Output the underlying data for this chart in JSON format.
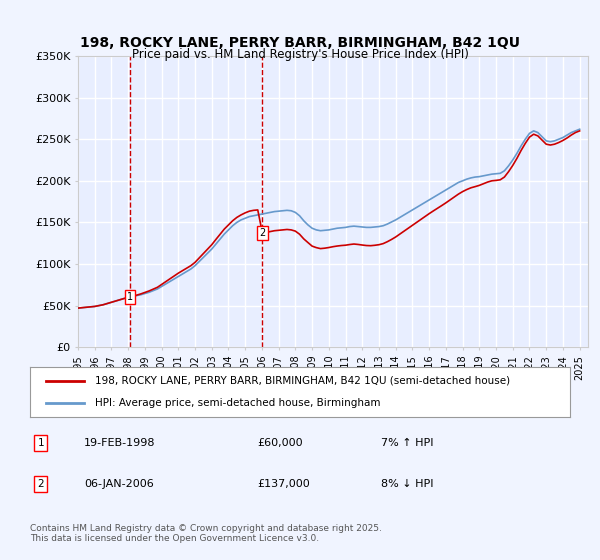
{
  "title": "198, ROCKY LANE, PERRY BARR, BIRMINGHAM, B42 1QU",
  "subtitle": "Price paid vs. HM Land Registry's House Price Index (HPI)",
  "xlabel": "",
  "ylabel": "",
  "background_color": "#f0f4ff",
  "plot_bg_color": "#e8eeff",
  "grid_color": "#ffffff",
  "ylim": [
    0,
    350000
  ],
  "yticks": [
    0,
    50000,
    100000,
    150000,
    200000,
    250000,
    300000,
    350000
  ],
  "ytick_labels": [
    "£0",
    "£50K",
    "£100K",
    "£150K",
    "£200K",
    "£250K",
    "£300K",
    "£350K"
  ],
  "xlim": [
    1995,
    2025.5
  ],
  "xticks": [
    1995,
    1996,
    1997,
    1998,
    1999,
    2000,
    2001,
    2002,
    2003,
    2004,
    2005,
    2006,
    2007,
    2008,
    2009,
    2010,
    2011,
    2012,
    2013,
    2014,
    2015,
    2016,
    2017,
    2018,
    2019,
    2020,
    2021,
    2022,
    2023,
    2024,
    2025
  ],
  "sale_dates": [
    1998.13,
    2006.03
  ],
  "sale_prices": [
    60000,
    137000
  ],
  "sale_labels": [
    "1",
    "2"
  ],
  "sale_info": [
    {
      "label": "1",
      "date": "19-FEB-1998",
      "price": "£60,000",
      "hpi": "7% ↑ HPI"
    },
    {
      "label": "2",
      "date": "06-JAN-2006",
      "price": "£137,000",
      "hpi": "8% ↓ HPI"
    }
  ],
  "legend_entries": [
    "198, ROCKY LANE, PERRY BARR, BIRMINGHAM, B42 1QU (semi-detached house)",
    "HPI: Average price, semi-detached house, Birmingham"
  ],
  "line_color_red": "#cc0000",
  "line_color_blue": "#6699cc",
  "footer": "Contains HM Land Registry data © Crown copyright and database right 2025.\nThis data is licensed under the Open Government Licence v3.0.",
  "hpi_x": [
    1995.0,
    1995.25,
    1995.5,
    1995.75,
    1996.0,
    1996.25,
    1996.5,
    1996.75,
    1997.0,
    1997.25,
    1997.5,
    1997.75,
    1998.0,
    1998.25,
    1998.5,
    1998.75,
    1999.0,
    1999.25,
    1999.5,
    1999.75,
    2000.0,
    2000.25,
    2000.5,
    2000.75,
    2001.0,
    2001.25,
    2001.5,
    2001.75,
    2002.0,
    2002.25,
    2002.5,
    2002.75,
    2003.0,
    2003.25,
    2003.5,
    2003.75,
    2004.0,
    2004.25,
    2004.5,
    2004.75,
    2005.0,
    2005.25,
    2005.5,
    2005.75,
    2006.0,
    2006.25,
    2006.5,
    2006.75,
    2007.0,
    2007.25,
    2007.5,
    2007.75,
    2008.0,
    2008.25,
    2008.5,
    2008.75,
    2009.0,
    2009.25,
    2009.5,
    2009.75,
    2010.0,
    2010.25,
    2010.5,
    2010.75,
    2011.0,
    2011.25,
    2011.5,
    2011.75,
    2012.0,
    2012.25,
    2012.5,
    2012.75,
    2013.0,
    2013.25,
    2013.5,
    2013.75,
    2014.0,
    2014.25,
    2014.5,
    2014.75,
    2015.0,
    2015.25,
    2015.5,
    2015.75,
    2016.0,
    2016.25,
    2016.5,
    2016.75,
    2017.0,
    2017.25,
    2017.5,
    2017.75,
    2018.0,
    2018.25,
    2018.5,
    2018.75,
    2019.0,
    2019.25,
    2019.5,
    2019.75,
    2020.0,
    2020.25,
    2020.5,
    2020.75,
    2021.0,
    2021.25,
    2021.5,
    2021.75,
    2022.0,
    2022.25,
    2022.5,
    2022.75,
    2023.0,
    2023.25,
    2023.5,
    2023.75,
    2024.0,
    2024.25,
    2024.5,
    2024.75,
    2025.0
  ],
  "hpi_y": [
    47000,
    47500,
    48000,
    48500,
    49000,
    50000,
    51000,
    52500,
    54000,
    55500,
    57000,
    58500,
    60000,
    61000,
    62000,
    63000,
    64500,
    66000,
    68000,
    70000,
    73000,
    76000,
    79000,
    82000,
    85000,
    88000,
    91000,
    94000,
    98000,
    103000,
    108000,
    113000,
    118000,
    124000,
    130000,
    136000,
    141000,
    146000,
    150000,
    153000,
    155000,
    157000,
    158000,
    159000,
    160000,
    161000,
    162000,
    163000,
    163500,
    164000,
    164500,
    164000,
    162000,
    158000,
    152000,
    147000,
    143000,
    141000,
    140000,
    140500,
    141000,
    142000,
    143000,
    143500,
    144000,
    145000,
    145500,
    145000,
    144500,
    144000,
    144000,
    144500,
    145000,
    146000,
    148000,
    150500,
    153000,
    156000,
    159000,
    162000,
    165000,
    168000,
    171000,
    174000,
    177000,
    180000,
    183000,
    186000,
    189000,
    192000,
    195000,
    198000,
    200000,
    202000,
    203500,
    204500,
    205000,
    206000,
    207000,
    208000,
    208500,
    209000,
    212000,
    218000,
    225000,
    233000,
    242000,
    250000,
    257000,
    260000,
    258000,
    253000,
    248000,
    247000,
    248000,
    250000,
    252000,
    255000,
    258000,
    260000,
    262000
  ],
  "red_x": [
    1995.0,
    1995.25,
    1995.5,
    1995.75,
    1996.0,
    1996.25,
    1996.5,
    1996.75,
    1997.0,
    1997.25,
    1997.5,
    1997.75,
    1998.13,
    1998.25,
    1998.5,
    1998.75,
    1999.0,
    1999.25,
    1999.5,
    1999.75,
    2000.0,
    2000.25,
    2000.5,
    2000.75,
    2001.0,
    2001.25,
    2001.5,
    2001.75,
    2002.0,
    2002.25,
    2002.5,
    2002.75,
    2003.0,
    2003.25,
    2003.5,
    2003.75,
    2004.0,
    2004.25,
    2004.5,
    2004.75,
    2005.0,
    2005.25,
    2005.5,
    2005.75,
    2006.03,
    2006.25,
    2006.5,
    2006.75,
    2007.0,
    2007.25,
    2007.5,
    2007.75,
    2008.0,
    2008.25,
    2008.5,
    2008.75,
    2009.0,
    2009.25,
    2009.5,
    2009.75,
    2010.0,
    2010.25,
    2010.5,
    2010.75,
    2011.0,
    2011.25,
    2011.5,
    2011.75,
    2012.0,
    2012.25,
    2012.5,
    2012.75,
    2013.0,
    2013.25,
    2013.5,
    2013.75,
    2014.0,
    2014.25,
    2014.5,
    2014.75,
    2015.0,
    2015.25,
    2015.5,
    2015.75,
    2016.0,
    2016.25,
    2016.5,
    2016.75,
    2017.0,
    2017.25,
    2017.5,
    2017.75,
    2018.0,
    2018.25,
    2018.5,
    2018.75,
    2019.0,
    2019.25,
    2019.5,
    2019.75,
    2020.0,
    2020.25,
    2020.5,
    2020.75,
    2021.0,
    2021.25,
    2021.5,
    2021.75,
    2022.0,
    2022.25,
    2022.5,
    2022.75,
    2023.0,
    2023.25,
    2023.5,
    2023.75,
    2024.0,
    2024.25,
    2024.5,
    2024.75,
    2025.0
  ],
  "red_y": [
    47000,
    47500,
    48000,
    48500,
    49000,
    50000,
    51000,
    52500,
    54000,
    55500,
    57000,
    58500,
    60000,
    61200,
    62500,
    64000,
    65800,
    67600,
    69800,
    72000,
    75400,
    78800,
    82200,
    85600,
    89000,
    92000,
    95000,
    98000,
    102000,
    107300,
    112600,
    117900,
    123200,
    129600,
    135800,
    142000,
    147000,
    152000,
    156000,
    159000,
    161500,
    163500,
    164500,
    165000,
    137000,
    138000,
    139000,
    140000,
    140500,
    141000,
    141500,
    141000,
    139500,
    135800,
    130200,
    125800,
    121500,
    119700,
    118500,
    119000,
    119800,
    120800,
    121600,
    122200,
    122600,
    123400,
    124000,
    123500,
    122800,
    122200,
    122000,
    122500,
    123200,
    124500,
    126800,
    129500,
    132500,
    136000,
    139500,
    143000,
    146500,
    150000,
    153500,
    157000,
    160500,
    163800,
    167000,
    170200,
    173500,
    177000,
    180500,
    184000,
    187000,
    189500,
    191600,
    193000,
    194500,
    196500,
    198500,
    200000,
    200500,
    201200,
    204500,
    211000,
    218500,
    227000,
    236500,
    245000,
    252500,
    256000,
    254000,
    249000,
    244000,
    243000,
    244000,
    246000,
    248500,
    251500,
    255000,
    258000,
    260000
  ]
}
